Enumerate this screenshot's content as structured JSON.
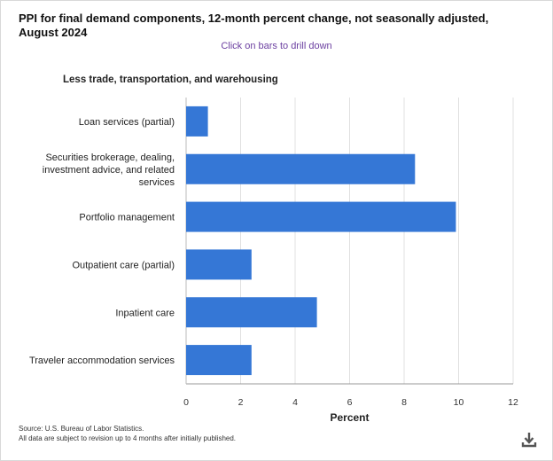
{
  "title": "PPI for final demand components, 12-month percent change, not seasonally adjusted, August 2024",
  "hint": "Click on bars to drill down",
  "group_label": "Less trade, transportation, and warehousing",
  "source_lines": [
    "Source: U.S. Bureau of Labor Statistics.",
    "All data are subject to revision up to 4 months after initially published."
  ],
  "download_icon": "download-icon",
  "colors": {
    "bar": "#3577d6",
    "grid": "#e0e0e0",
    "hint": "#6b3fa0"
  },
  "chart_data": {
    "type": "bar",
    "orientation": "horizontal",
    "categories": [
      [
        "Loan services (partial)"
      ],
      [
        "Securities brokerage, dealing,",
        "investment advice, and related",
        "services"
      ],
      [
        "Portfolio management"
      ],
      [
        "Outpatient care (partial)"
      ],
      [
        "Inpatient care"
      ],
      [
        "Traveler accommodation services"
      ]
    ],
    "values": [
      0.8,
      8.4,
      9.9,
      2.4,
      4.8,
      2.4
    ],
    "xlabel": "Percent",
    "xlim": [
      0,
      12
    ],
    "xticks": [
      0,
      2,
      4,
      6,
      8,
      10,
      12
    ],
    "grid": true
  }
}
